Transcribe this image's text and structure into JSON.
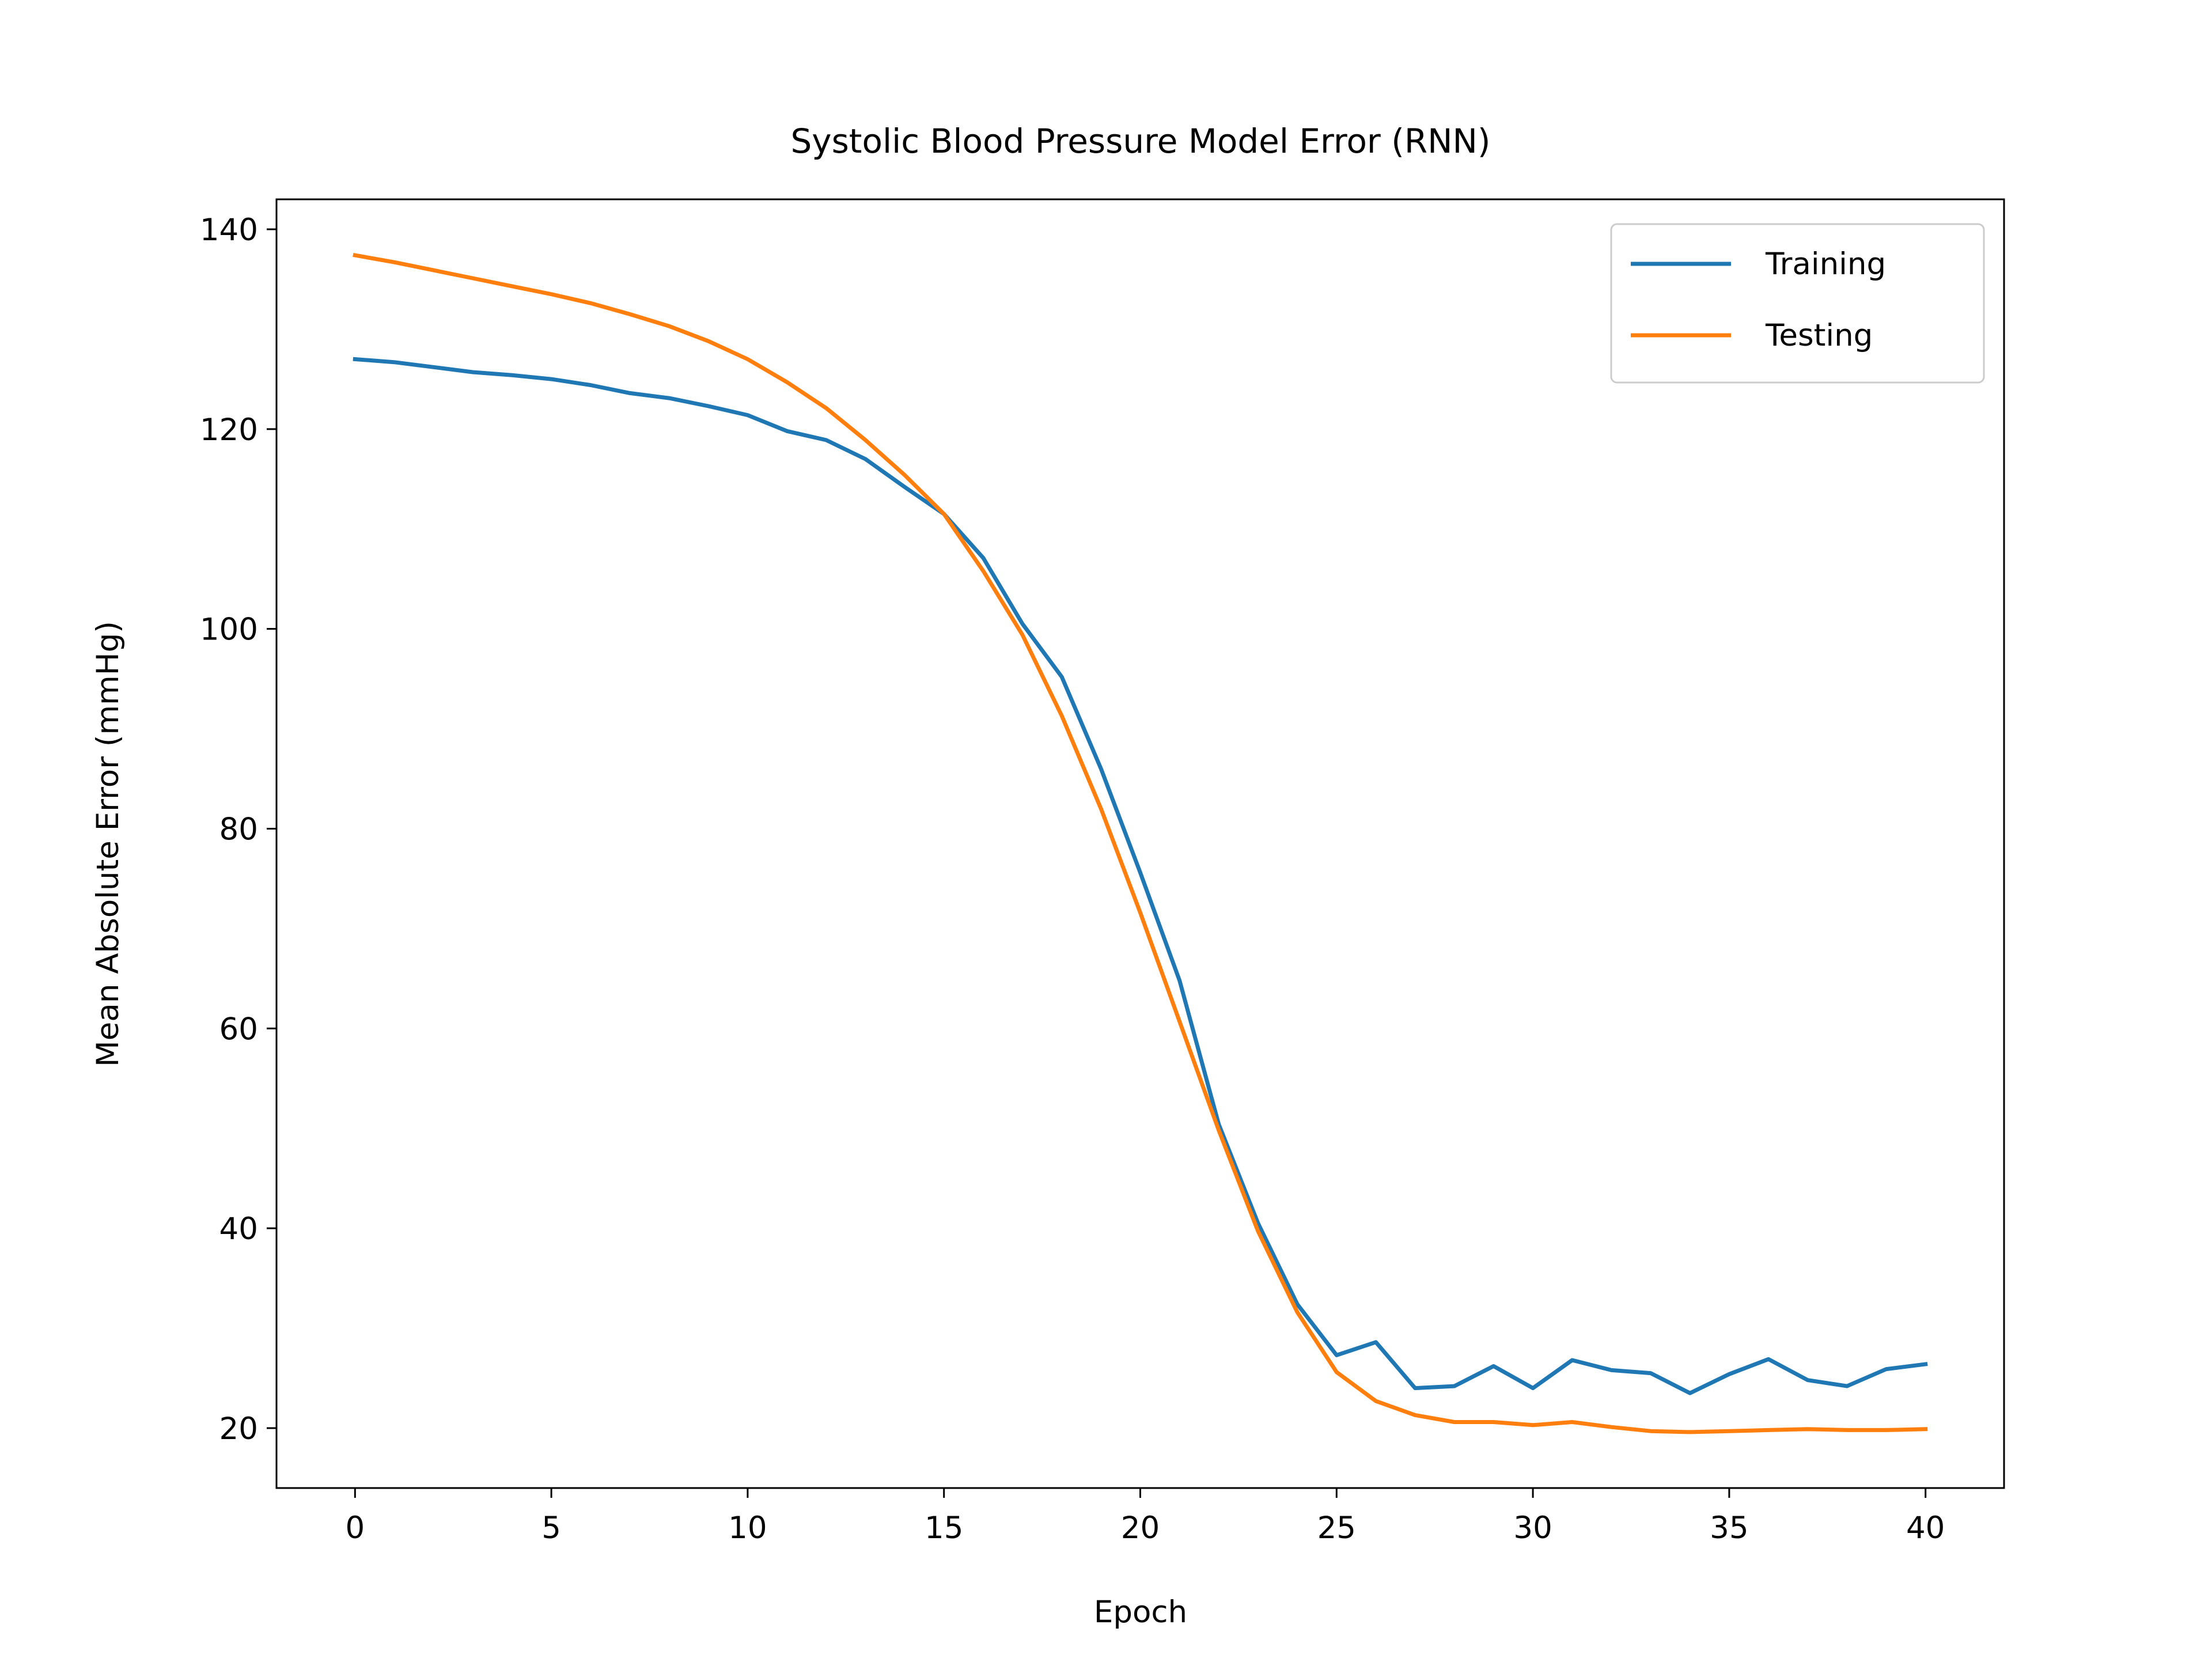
{
  "chart_data": {
    "type": "line",
    "title": "Systolic Blood Pressure Model Error (RNN)",
    "xlabel": "Epoch",
    "ylabel": "Mean Absolute Error (mmHg)",
    "xlim": [
      -2,
      42
    ],
    "ylim": [
      14,
      143
    ],
    "xticks": [
      0,
      5,
      10,
      15,
      20,
      25,
      30,
      35,
      40
    ],
    "yticks": [
      20,
      40,
      60,
      80,
      100,
      120,
      140
    ],
    "grid": false,
    "legend_position": "top-right",
    "x": [
      0,
      1,
      2,
      3,
      4,
      5,
      6,
      7,
      8,
      9,
      10,
      11,
      12,
      13,
      14,
      15,
      16,
      17,
      18,
      19,
      20,
      21,
      22,
      23,
      24,
      25,
      26,
      27,
      28,
      29,
      30,
      31,
      32,
      33,
      34,
      35,
      36,
      37,
      38,
      39,
      40
    ],
    "series": [
      {
        "name": "Training",
        "color": "#1f77b4",
        "values": [
          127.0,
          126.7,
          126.2,
          125.7,
          125.4,
          125.0,
          124.4,
          123.6,
          123.1,
          122.3,
          121.4,
          119.8,
          118.9,
          117.0,
          114.2,
          111.5,
          107.1,
          100.5,
          95.2,
          86.0,
          75.6,
          64.8,
          50.4,
          40.5,
          32.4,
          27.3,
          28.6,
          24.0,
          24.2,
          26.2,
          24.0,
          26.8,
          25.8,
          25.5,
          23.5,
          25.4,
          26.9,
          24.8,
          24.2,
          25.9,
          26.4
        ]
      },
      {
        "name": "Testing",
        "color": "#ff7f0e",
        "values": [
          137.4,
          136.7,
          135.9,
          135.1,
          134.3,
          133.5,
          132.6,
          131.5,
          130.3,
          128.8,
          127.0,
          124.7,
          122.1,
          118.9,
          115.4,
          111.5,
          105.8,
          99.4,
          91.3,
          82.0,
          71.6,
          60.7,
          49.8,
          39.7,
          31.6,
          25.6,
          22.7,
          21.3,
          20.6,
          20.6,
          20.3,
          20.6,
          20.1,
          19.7,
          19.6,
          19.7,
          19.8,
          19.9,
          19.8,
          19.8,
          19.9
        ]
      }
    ]
  }
}
